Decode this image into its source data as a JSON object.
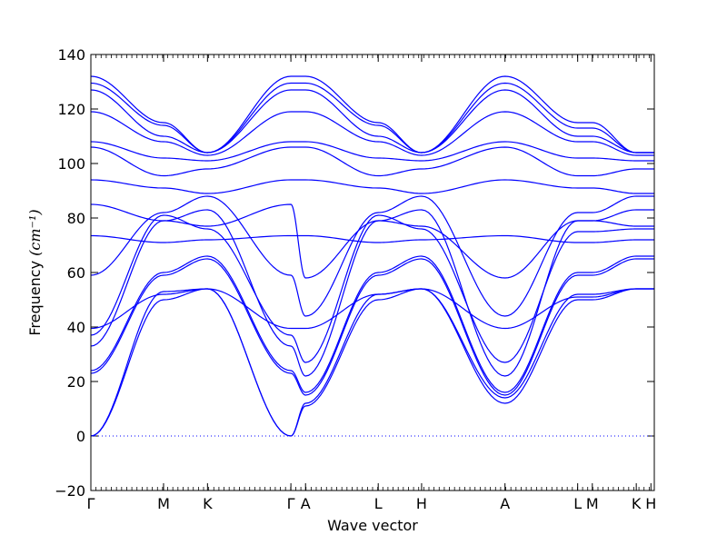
{
  "chart_data": {
    "type": "line",
    "title": "",
    "xlabel": "Wave vector",
    "ylabel": "Frequency",
    "ylabel_unit": "(cm⁻¹)",
    "ylim": [
      -20,
      140
    ],
    "yticks": [
      -20,
      0,
      20,
      40,
      60,
      80,
      100,
      120,
      140
    ],
    "ytick_labels": [
      "−20",
      "0",
      "20",
      "40",
      "60",
      "80",
      "100",
      "120",
      "140"
    ],
    "xlim": [
      0,
      1
    ],
    "x_high_symmetry_points": [
      {
        "label": "Γ",
        "x": 0.0
      },
      {
        "label": "M",
        "x": 0.129
      },
      {
        "label": "K",
        "x": 0.207
      },
      {
        "label": "Γ",
        "x": 0.355
      },
      {
        "label": "A",
        "x": 0.381
      },
      {
        "label": "L",
        "x": 0.51
      },
      {
        "label": "H",
        "x": 0.587
      },
      {
        "label": "A",
        "x": 0.735
      },
      {
        "label": "L",
        "x": 0.864
      },
      {
        "label": "M",
        "x": 0.89
      },
      {
        "label": "K",
        "x": 0.968
      },
      {
        "label": "H",
        "x": 0.994
      }
    ],
    "zero_line": {
      "y": 0,
      "style": "dotted",
      "color": "#0000ff"
    },
    "line_color": "#0000ff",
    "series": [
      {
        "x": [
          0,
          0.129,
          0.207,
          0.355,
          0.381,
          0.51,
          0.587,
          0.735,
          0.864,
          0.89,
          0.968,
          1.0
        ],
        "values": [
          0,
          50,
          54,
          0,
          11,
          50,
          54,
          12,
          50,
          50,
          54,
          54
        ]
      },
      {
        "x": [
          0,
          0.129,
          0.207,
          0.355,
          0.381,
          0.51,
          0.587,
          0.735,
          0.864,
          0.89,
          0.968,
          1.0
        ],
        "values": [
          0,
          53,
          54,
          0,
          12,
          52,
          54,
          14,
          52,
          52,
          54,
          54
        ]
      },
      {
        "x": [
          0,
          0.129,
          0.207,
          0.355,
          0.381,
          0.51,
          0.587,
          0.735,
          0.864,
          0.89,
          0.968,
          1.0
        ],
        "values": [
          23,
          59,
          65,
          23,
          15,
          59,
          65,
          15,
          59,
          59,
          65,
          65
        ]
      },
      {
        "x": [
          0,
          0.129,
          0.207,
          0.355,
          0.381,
          0.51,
          0.587,
          0.735,
          0.864,
          0.89,
          0.968,
          1.0
        ],
        "values": [
          24,
          60,
          66,
          24,
          16,
          60,
          66,
          16,
          60,
          60,
          66,
          66
        ]
      },
      {
        "x": [
          0,
          0.129,
          0.207,
          0.355,
          0.381,
          0.51,
          0.587,
          0.735,
          0.864,
          0.89,
          0.968,
          1.0
        ],
        "values": [
          33,
          79,
          83,
          33,
          22,
          79,
          83,
          22,
          79,
          79,
          83,
          83
        ]
      },
      {
        "x": [
          0,
          0.129,
          0.207,
          0.355,
          0.381,
          0.51,
          0.587,
          0.735,
          0.864,
          0.89,
          0.968,
          1.0
        ],
        "values": [
          37,
          81,
          76,
          37,
          27,
          81,
          76,
          27,
          75,
          75,
          76,
          76
        ]
      },
      {
        "x": [
          0,
          0.129,
          0.207,
          0.355,
          0.381,
          0.51,
          0.587,
          0.735,
          0.864,
          0.89,
          0.968,
          1.0
        ],
        "values": [
          39.5,
          52,
          54,
          39.5,
          39.5,
          52,
          54,
          39.5,
          51,
          51,
          54,
          54
        ]
      },
      {
        "x": [
          0,
          0.129,
          0.207,
          0.355,
          0.381,
          0.51,
          0.587,
          0.735,
          0.864,
          0.89,
          0.968,
          1.0
        ],
        "values": [
          59,
          82,
          88,
          59,
          44,
          82,
          88,
          44,
          82,
          82,
          88,
          88
        ]
      },
      {
        "x": [
          0,
          0.129,
          0.207,
          0.355,
          0.381,
          0.51,
          0.587,
          0.735,
          0.864,
          0.89,
          0.968,
          1.0
        ],
        "values": [
          73.5,
          71,
          72,
          73.5,
          73.5,
          71,
          72,
          73.5,
          71,
          71,
          72,
          72
        ]
      },
      {
        "x": [
          0,
          0.129,
          0.207,
          0.355,
          0.381,
          0.51,
          0.587,
          0.735,
          0.864,
          0.89,
          0.968,
          1.0
        ],
        "values": [
          85,
          79,
          77,
          85,
          58,
          79,
          77,
          58,
          79,
          79,
          77,
          77
        ]
      },
      {
        "x": [
          0,
          0.129,
          0.207,
          0.355,
          0.381,
          0.51,
          0.587,
          0.735,
          0.864,
          0.89,
          0.968,
          1.0
        ],
        "values": [
          94,
          91,
          89,
          94,
          94,
          91,
          89,
          94,
          91,
          91,
          89,
          89
        ]
      },
      {
        "x": [
          0,
          0.129,
          0.207,
          0.355,
          0.381,
          0.51,
          0.587,
          0.735,
          0.864,
          0.89,
          0.968,
          1.0
        ],
        "values": [
          106,
          95.5,
          98,
          106,
          106,
          95.5,
          98,
          106,
          95.5,
          95.5,
          98,
          98
        ]
      },
      {
        "x": [
          0,
          0.129,
          0.207,
          0.355,
          0.381,
          0.51,
          0.587,
          0.735,
          0.864,
          0.89,
          0.968,
          1.0
        ],
        "values": [
          108,
          102,
          101,
          108,
          108,
          102,
          101,
          108,
          102,
          102,
          101,
          101
        ]
      },
      {
        "x": [
          0,
          0.129,
          0.207,
          0.355,
          0.381,
          0.51,
          0.587,
          0.735,
          0.864,
          0.89,
          0.968,
          1.0
        ],
        "values": [
          119,
          108,
          103,
          119,
          119,
          108,
          103,
          119,
          108,
          108,
          103,
          103
        ]
      },
      {
        "x": [
          0,
          0.129,
          0.207,
          0.355,
          0.381,
          0.51,
          0.587,
          0.735,
          0.864,
          0.89,
          0.968,
          1.0
        ],
        "values": [
          127,
          110,
          104,
          127,
          127,
          110,
          104,
          127,
          110,
          110,
          104,
          104
        ]
      },
      {
        "x": [
          0,
          0.129,
          0.207,
          0.355,
          0.381,
          0.51,
          0.587,
          0.735,
          0.864,
          0.89,
          0.968,
          1.0
        ],
        "values": [
          129.5,
          114,
          104,
          129.5,
          129.5,
          114,
          104,
          129.5,
          113,
          113,
          104,
          104
        ]
      },
      {
        "x": [
          0,
          0.129,
          0.207,
          0.355,
          0.381,
          0.51,
          0.587,
          0.735,
          0.864,
          0.89,
          0.968,
          1.0
        ],
        "values": [
          132,
          115,
          104,
          132,
          132,
          115,
          104,
          132,
          115,
          115,
          104,
          104
        ]
      }
    ]
  }
}
